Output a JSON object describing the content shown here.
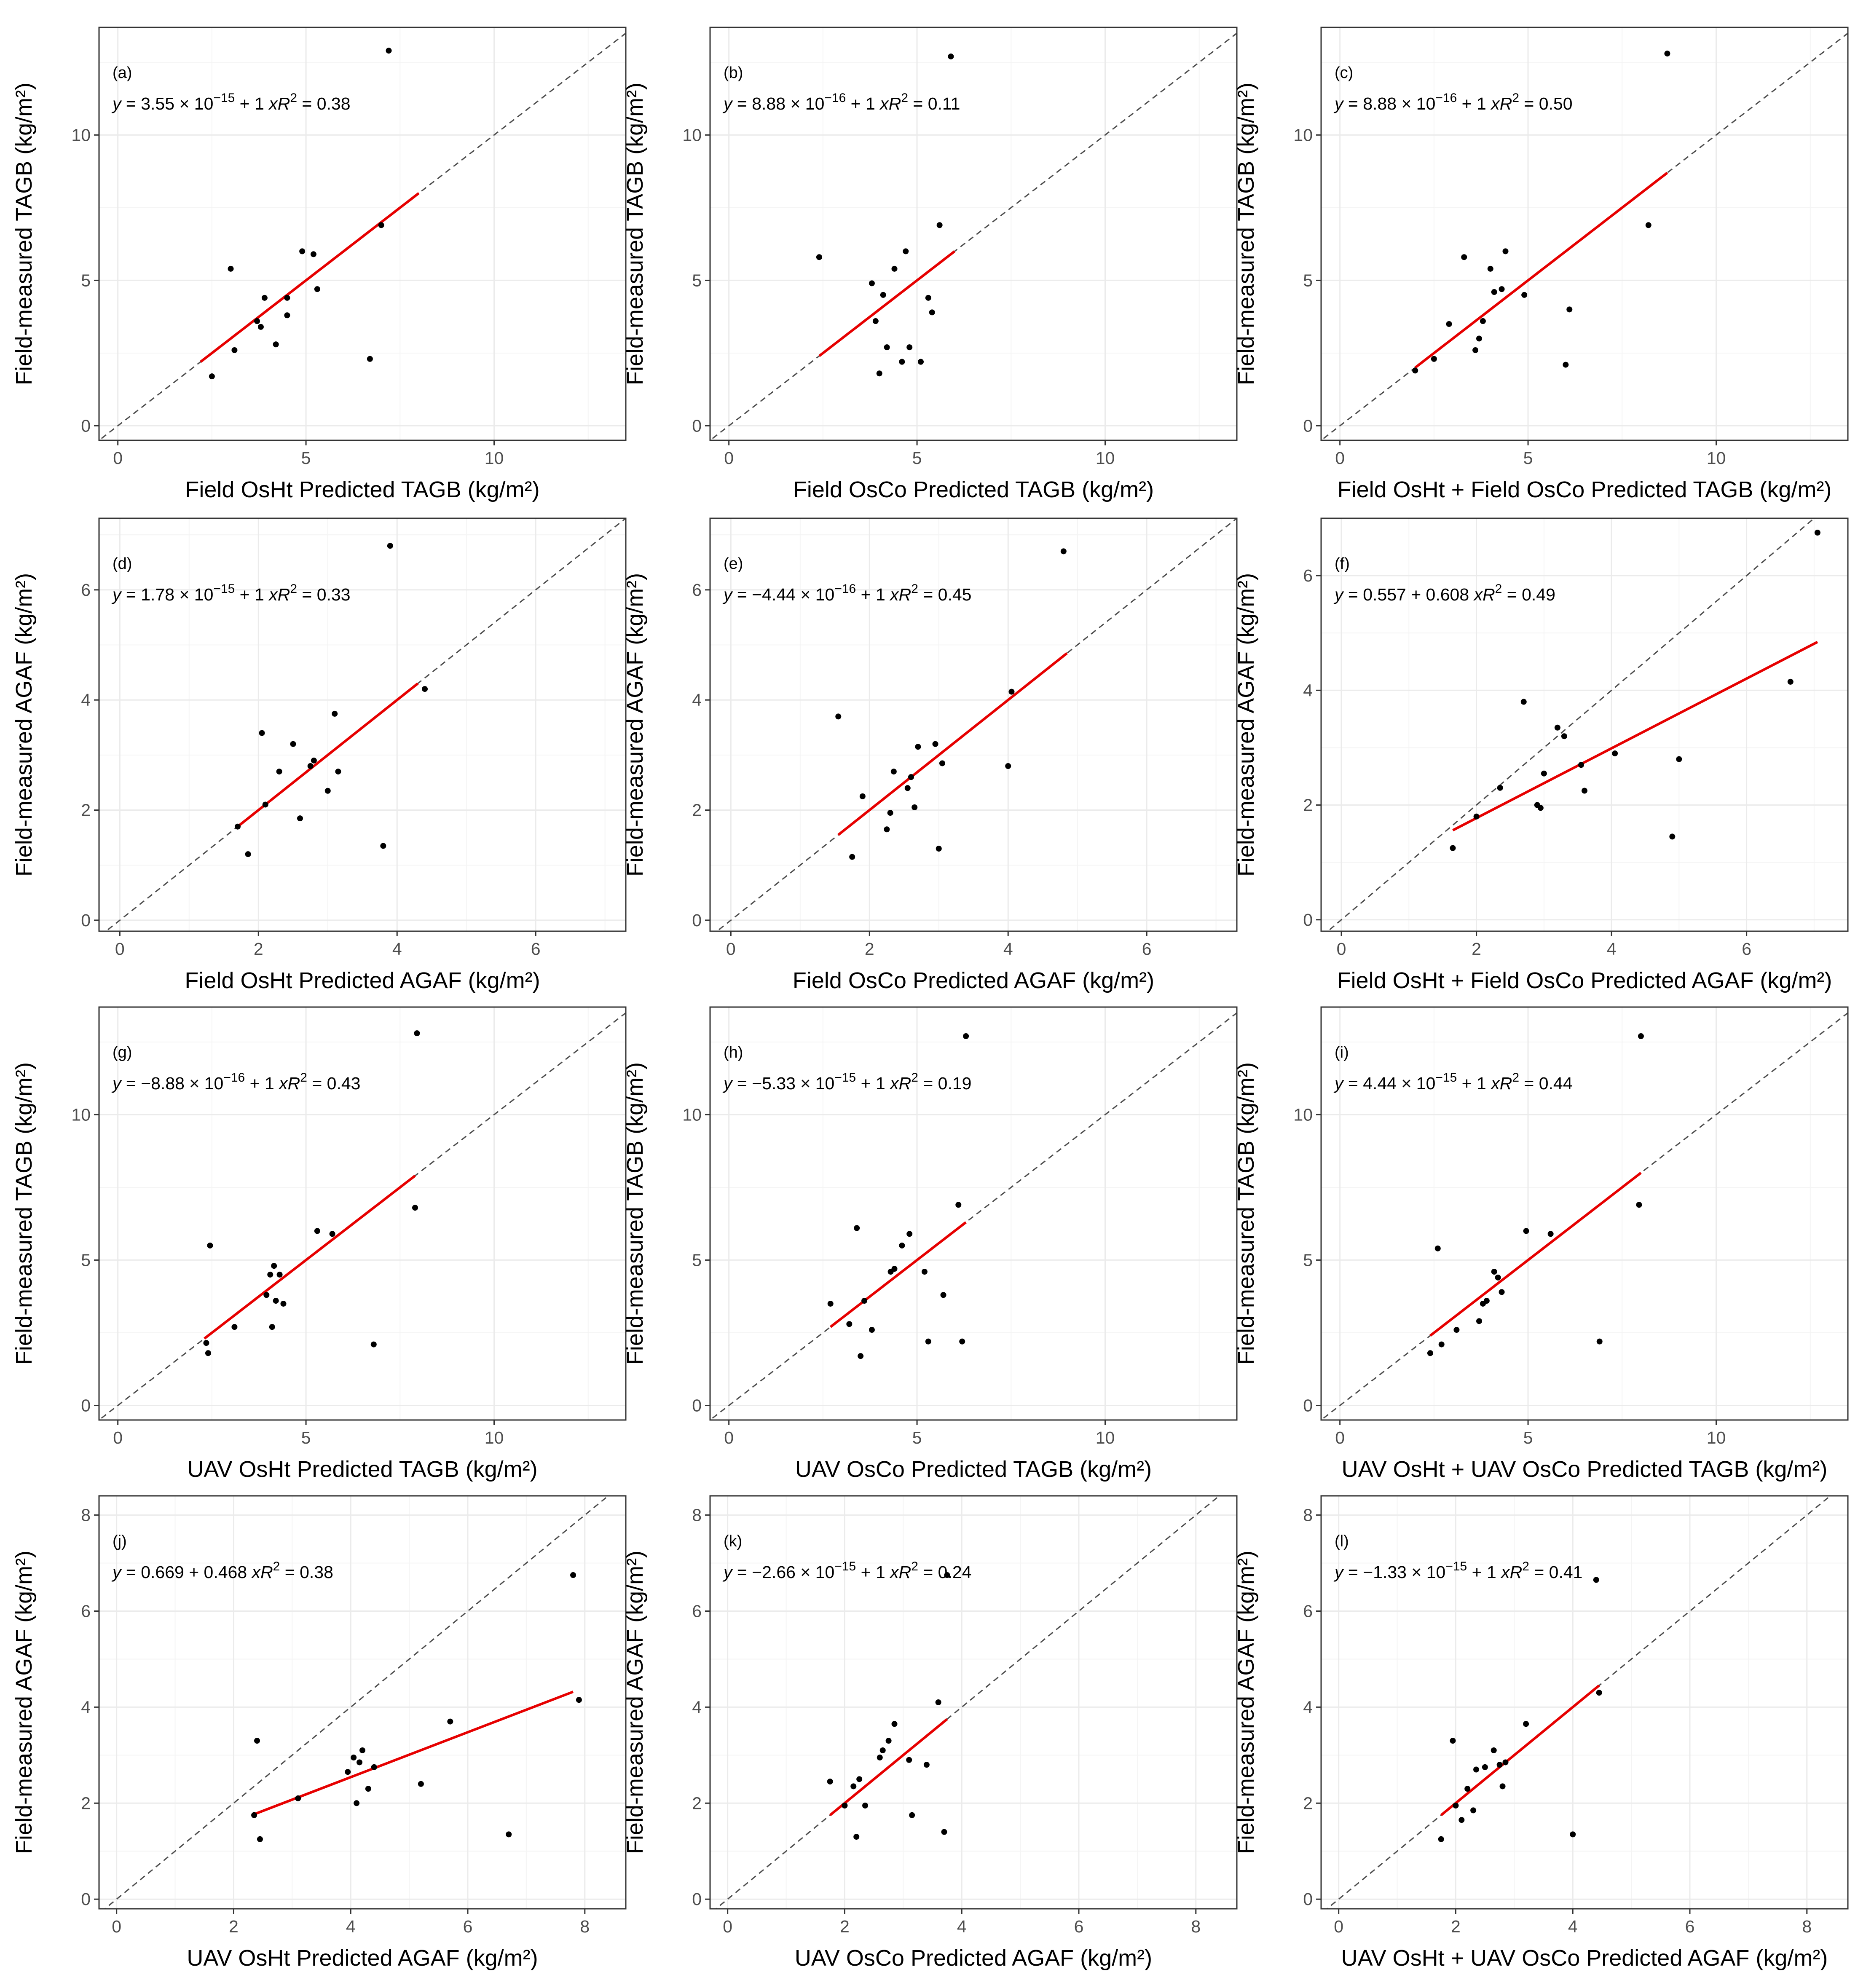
{
  "chart_data": [
    {
      "type": "scatter",
      "tag": "(a)",
      "xlabel": "Field OsHt Predicted TAGB (kg/m²)",
      "ylabel": "Field-measured TAGB (kg/m²)",
      "xlim": [
        -0.5,
        13.5
      ],
      "ylim": [
        -0.5,
        13.7
      ],
      "xticks": [
        0,
        5,
        10
      ],
      "yticks": [
        0,
        5,
        10
      ],
      "eq": {
        "y": "y",
        "eqs": " = ",
        "pre": "3.55",
        "times": " × 10",
        "exp": "−15",
        "post": " + 1 ",
        "x": "x",
        "r": "R",
        "two": "2",
        "rv": " = 0.38"
      },
      "fit": {
        "x0": 2.2,
        "x1": 8.0,
        "intercept": 0,
        "slope": 1
      },
      "x": [
        2.5,
        3.0,
        3.1,
        3.7,
        3.8,
        3.9,
        4.2,
        4.5,
        4.5,
        4.9,
        5.2,
        5.3,
        6.7,
        7.0,
        7.2
      ],
      "y": [
        1.7,
        5.4,
        2.6,
        3.6,
        3.4,
        4.4,
        2.8,
        3.8,
        4.4,
        6.0,
        5.9,
        4.7,
        2.3,
        6.9,
        12.9
      ]
    },
    {
      "type": "scatter",
      "tag": "(b)",
      "xlabel": "Field OsCo Predicted TAGB (kg/m²)",
      "ylabel": "Field-measured TAGB (kg/m²)",
      "xlim": [
        -0.5,
        13.5
      ],
      "ylim": [
        -0.5,
        13.7
      ],
      "xticks": [
        0,
        5,
        10
      ],
      "yticks": [
        0,
        5,
        10
      ],
      "eq": {
        "y": "y",
        "eqs": " = ",
        "pre": "8.88",
        "times": " × 10",
        "exp": "−16",
        "post": " + 1 ",
        "x": "x",
        "r": "R",
        "two": "2",
        "rv": " = 0.11"
      },
      "fit": {
        "x0": 2.4,
        "x1": 6.0,
        "intercept": 0,
        "slope": 1
      },
      "x": [
        2.4,
        3.8,
        3.9,
        4.0,
        4.1,
        4.2,
        4.4,
        4.6,
        4.7,
        4.8,
        5.1,
        5.3,
        5.4,
        5.6,
        5.9
      ],
      "y": [
        5.8,
        4.9,
        3.6,
        1.8,
        4.5,
        2.7,
        5.4,
        2.2,
        6.0,
        2.7,
        2.2,
        4.4,
        3.9,
        6.9,
        12.7
      ]
    },
    {
      "type": "scatter",
      "tag": "(c)",
      "xlabel": "Field OsHt + Field OsCo Predicted TAGB (kg/m²)",
      "ylabel": "Field-measured TAGB (kg/m²)",
      "xlim": [
        -0.5,
        13.5
      ],
      "ylim": [
        -0.5,
        13.7
      ],
      "xticks": [
        0,
        5,
        10
      ],
      "yticks": [
        0,
        5,
        10
      ],
      "eq": {
        "y": "y",
        "eqs": " = ",
        "pre": "8.88",
        "times": " × 10",
        "exp": "−16",
        "post": " + 1 ",
        "x": "x",
        "r": "R",
        "two": "2",
        "rv": " = 0.50"
      },
      "fit": {
        "x0": 2.0,
        "x1": 8.7,
        "intercept": 0,
        "slope": 1
      },
      "x": [
        2.0,
        2.5,
        2.9,
        3.3,
        3.6,
        3.7,
        3.8,
        4.0,
        4.1,
        4.3,
        4.4,
        4.9,
        6.0,
        6.1,
        8.2,
        8.7
      ],
      "y": [
        1.9,
        2.3,
        3.5,
        5.8,
        2.6,
        3.0,
        3.6,
        5.4,
        4.6,
        4.7,
        6.0,
        4.5,
        2.1,
        4.0,
        6.9,
        12.8
      ]
    },
    {
      "type": "scatter",
      "tag": "(d)",
      "xlabel": "Field OsHt Predicted AGAF (kg/m²)",
      "ylabel": "Field-measured AGAF (kg/m²)",
      "xlim": [
        -0.3,
        7.3
      ],
      "ylim": [
        -0.2,
        7.3
      ],
      "xticks": [
        0,
        2,
        4,
        6
      ],
      "yticks": [
        0,
        2,
        4,
        6
      ],
      "eq": {
        "y": "y",
        "eqs": " = ",
        "pre": "1.78",
        "times": " × 10",
        "exp": "−15",
        "post": " + 1 ",
        "x": "x",
        "r": "R",
        "two": "2",
        "rv": " = 0.33"
      },
      "fit": {
        "x0": 1.7,
        "x1": 4.3,
        "intercept": 0,
        "slope": 1
      },
      "x": [
        1.7,
        1.85,
        2.05,
        2.1,
        2.3,
        2.5,
        2.6,
        2.75,
        2.8,
        3.0,
        3.1,
        3.15,
        3.8,
        3.9,
        4.4
      ],
      "y": [
        1.7,
        1.2,
        3.4,
        2.1,
        2.7,
        3.2,
        1.85,
        2.8,
        2.9,
        2.35,
        3.75,
        2.7,
        1.35,
        6.8,
        4.2
      ]
    },
    {
      "type": "scatter",
      "tag": "(e)",
      "xlabel": "Field OsCo Predicted AGAF (kg/m²)",
      "ylabel": "Field-measured AGAF (kg/m²)",
      "xlim": [
        -0.3,
        7.3
      ],
      "ylim": [
        -0.2,
        7.3
      ],
      "xticks": [
        0,
        2,
        4,
        6
      ],
      "yticks": [
        0,
        2,
        4,
        6
      ],
      "eq": {
        "y": "y",
        "eqs": " = ",
        "pre": "−4.44",
        "times": " × 10",
        "exp": "−16",
        "post": " + 1 ",
        "x": "x",
        "r": "R",
        "two": "2",
        "rv": " = 0.45"
      },
      "fit": {
        "x0": 1.55,
        "x1": 4.85,
        "intercept": 0,
        "slope": 1
      },
      "x": [
        1.55,
        1.75,
        1.9,
        2.25,
        2.3,
        2.35,
        2.55,
        2.6,
        2.65,
        2.7,
        2.95,
        3.0,
        3.05,
        4.0,
        4.05,
        4.8
      ],
      "y": [
        3.7,
        1.15,
        2.25,
        1.65,
        1.95,
        2.7,
        2.4,
        2.6,
        2.05,
        3.15,
        3.2,
        1.3,
        2.85,
        2.8,
        4.15,
        6.7
      ]
    },
    {
      "type": "scatter",
      "tag": "(f)",
      "xlabel": "Field OsHt + Field OsCo Predicted AGAF (kg/m²)",
      "ylabel": "Field-measured AGAF (kg/m²)",
      "xlim": [
        -0.3,
        7.5
      ],
      "ylim": [
        -0.2,
        7.0
      ],
      "xticks": [
        0,
        2,
        4,
        6
      ],
      "yticks": [
        0,
        2,
        4,
        6
      ],
      "eq": {
        "y": "y",
        "eqs": " = ",
        "pre": "0.557 + 0.608 ",
        "times": "",
        "exp": "",
        "post": "",
        "x": "x",
        "r": "R",
        "two": "2",
        "rv": " = 0.49"
      },
      "fit": {
        "x0": 1.65,
        "x1": 7.05,
        "intercept": 0.557,
        "slope": 0.608
      },
      "x": [
        1.65,
        2.0,
        2.35,
        2.7,
        2.9,
        2.95,
        3.0,
        3.2,
        3.3,
        3.55,
        3.6,
        4.05,
        4.9,
        5.0,
        6.65,
        7.05
      ],
      "y": [
        1.25,
        1.8,
        2.3,
        3.8,
        2.0,
        1.95,
        2.55,
        3.35,
        3.2,
        2.7,
        2.25,
        2.9,
        1.45,
        2.8,
        4.15,
        6.75
      ]
    },
    {
      "type": "scatter",
      "tag": "(g)",
      "xlabel": "UAV OsHt Predicted TAGB (kg/m²)",
      "ylabel": "Field-measured TAGB (kg/m²)",
      "xlim": [
        -0.5,
        13.5
      ],
      "ylim": [
        -0.5,
        13.7
      ],
      "xticks": [
        0,
        5,
        10
      ],
      "yticks": [
        0,
        5,
        10
      ],
      "eq": {
        "y": "y",
        "eqs": " = ",
        "pre": "−8.88",
        "times": " × 10",
        "exp": "−16",
        "post": " + 1 ",
        "x": "x",
        "r": "R",
        "two": "2",
        "rv": " = 0.43"
      },
      "fit": {
        "x0": 2.3,
        "x1": 7.9,
        "intercept": 0,
        "slope": 1
      },
      "x": [
        2.35,
        2.4,
        2.45,
        3.1,
        3.95,
        4.05,
        4.1,
        4.15,
        4.2,
        4.3,
        4.4,
        5.3,
        5.7,
        6.8,
        7.9,
        7.95
      ],
      "y": [
        2.15,
        1.8,
        5.5,
        2.7,
        3.8,
        4.5,
        2.7,
        4.8,
        3.6,
        4.5,
        3.5,
        6.0,
        5.9,
        2.1,
        6.8,
        12.8
      ]
    },
    {
      "type": "scatter",
      "tag": "(h)",
      "xlabel": "UAV OsCo Predicted TAGB (kg/m²)",
      "ylabel": "Field-measured TAGB (kg/m²)",
      "xlim": [
        -0.5,
        13.5
      ],
      "ylim": [
        -0.5,
        13.7
      ],
      "xticks": [
        0,
        5,
        10
      ],
      "yticks": [
        0,
        5,
        10
      ],
      "eq": {
        "y": "y",
        "eqs": " = ",
        "pre": "−5.33",
        "times": " × 10",
        "exp": "−15",
        "post": " + 1 ",
        "x": "x",
        "r": "R",
        "two": "2",
        "rv": " = 0.19"
      },
      "fit": {
        "x0": 2.7,
        "x1": 6.3,
        "intercept": 0,
        "slope": 1
      },
      "x": [
        2.7,
        3.2,
        3.4,
        3.5,
        3.6,
        3.8,
        4.3,
        4.4,
        4.6,
        4.8,
        5.2,
        5.3,
        5.7,
        6.1,
        6.2,
        6.3
      ],
      "y": [
        3.5,
        2.8,
        6.1,
        1.7,
        3.6,
        2.6,
        4.6,
        4.7,
        5.5,
        5.9,
        4.6,
        2.2,
        3.8,
        6.9,
        2.2,
        12.7
      ]
    },
    {
      "type": "scatter",
      "tag": "(i)",
      "xlabel": "UAV OsHt + UAV OsCo Predicted TAGB (kg/m²)",
      "ylabel": "Field-measured TAGB (kg/m²)",
      "xlim": [
        -0.5,
        13.5
      ],
      "ylim": [
        -0.5,
        13.7
      ],
      "xticks": [
        0,
        5,
        10
      ],
      "yticks": [
        0,
        5,
        10
      ],
      "eq": {
        "y": "y",
        "eqs": " = ",
        "pre": "4.44",
        "times": " × 10",
        "exp": "−15",
        "post": " + 1 ",
        "x": "x",
        "r": "R",
        "two": "2",
        "rv": " = 0.44"
      },
      "fit": {
        "x0": 2.4,
        "x1": 8.0,
        "intercept": 0,
        "slope": 1
      },
      "x": [
        2.4,
        2.6,
        2.7,
        3.1,
        3.7,
        3.8,
        3.9,
        4.1,
        4.2,
        4.3,
        4.95,
        5.6,
        6.9,
        7.95,
        8.0
      ],
      "y": [
        1.8,
        5.4,
        2.1,
        2.6,
        2.9,
        3.5,
        3.6,
        4.6,
        4.4,
        3.9,
        6.0,
        5.9,
        2.2,
        6.9,
        12.7
      ]
    },
    {
      "type": "scatter",
      "tag": "(j)",
      "xlabel": "UAV OsHt Predicted AGAF (kg/m²)",
      "ylabel": "Field-measured AGAF (kg/m²)",
      "xlim": [
        -0.3,
        8.7
      ],
      "ylim": [
        -0.2,
        8.4
      ],
      "xticks": [
        0,
        2,
        4,
        6,
        8
      ],
      "yticks": [
        0,
        2,
        4,
        6,
        8
      ],
      "eq": {
        "y": "y",
        "eqs": " = ",
        "pre": "0.669 + 0.468 ",
        "times": "",
        "exp": "",
        "post": "",
        "x": "x",
        "r": "R",
        "two": "2",
        "rv": " = 0.38"
      },
      "fit": {
        "x0": 2.35,
        "x1": 7.8,
        "intercept": 0.669,
        "slope": 0.468
      },
      "x": [
        2.35,
        2.4,
        2.45,
        3.1,
        3.95,
        4.05,
        4.1,
        4.15,
        4.2,
        4.3,
        4.4,
        5.2,
        5.7,
        6.7,
        7.8,
        7.9
      ],
      "y": [
        1.75,
        3.3,
        1.25,
        2.1,
        2.65,
        2.95,
        2.0,
        2.85,
        3.1,
        2.3,
        2.75,
        2.4,
        3.7,
        1.35,
        6.75,
        4.15
      ]
    },
    {
      "type": "scatter",
      "tag": "(k)",
      "xlabel": "UAV OsCo Predicted AGAF (kg/m²)",
      "ylabel": "Field-measured AGAF (kg/m²)",
      "xlim": [
        -0.3,
        8.7
      ],
      "ylim": [
        -0.2,
        8.4
      ],
      "xticks": [
        0,
        2,
        4,
        6,
        8
      ],
      "yticks": [
        0,
        2,
        4,
        6,
        8
      ],
      "eq": {
        "y": "y",
        "eqs": " = ",
        "pre": "−2.66",
        "times": " × 10",
        "exp": "−15",
        "post": " + 1 ",
        "x": "x",
        "r": "R",
        "two": "2",
        "rv": " = 0.24"
      },
      "fit": {
        "x0": 1.75,
        "x1": 3.75,
        "intercept": 0,
        "slope": 1
      },
      "x": [
        1.75,
        2.0,
        2.15,
        2.2,
        2.25,
        2.35,
        2.6,
        2.65,
        2.75,
        2.85,
        3.1,
        3.15,
        3.4,
        3.6,
        3.7,
        3.75
      ],
      "y": [
        2.45,
        1.95,
        2.35,
        1.3,
        2.5,
        1.95,
        2.95,
        3.1,
        3.3,
        3.65,
        2.9,
        1.75,
        2.8,
        4.1,
        1.4,
        6.75
      ]
    },
    {
      "type": "scatter",
      "tag": "(l)",
      "xlabel": "UAV OsHt + UAV OsCo Predicted AGAF (kg/m²)",
      "ylabel": "Field-measured AGAF (kg/m²)",
      "xlim": [
        -0.3,
        8.7
      ],
      "ylim": [
        -0.2,
        8.4
      ],
      "xticks": [
        0,
        2,
        4,
        6,
        8
      ],
      "yticks": [
        0,
        2,
        4,
        6,
        8
      ],
      "eq": {
        "y": "y",
        "eqs": " = ",
        "pre": "−1.33",
        "times": " × 10",
        "exp": "−15",
        "post": " + 1 ",
        "x": "x",
        "r": "R",
        "two": "2",
        "rv": " = 0.41"
      },
      "fit": {
        "x0": 1.75,
        "x1": 4.45,
        "intercept": 0,
        "slope": 1
      },
      "x": [
        1.75,
        1.95,
        2.0,
        2.1,
        2.2,
        2.3,
        2.35,
        2.5,
        2.65,
        2.75,
        2.8,
        2.85,
        3.2,
        4.0,
        4.4,
        4.45
      ],
      "y": [
        1.25,
        3.3,
        1.95,
        1.65,
        2.3,
        1.85,
        2.7,
        2.75,
        3.1,
        2.8,
        2.35,
        2.85,
        3.65,
        1.35,
        6.65,
        4.3
      ]
    }
  ]
}
